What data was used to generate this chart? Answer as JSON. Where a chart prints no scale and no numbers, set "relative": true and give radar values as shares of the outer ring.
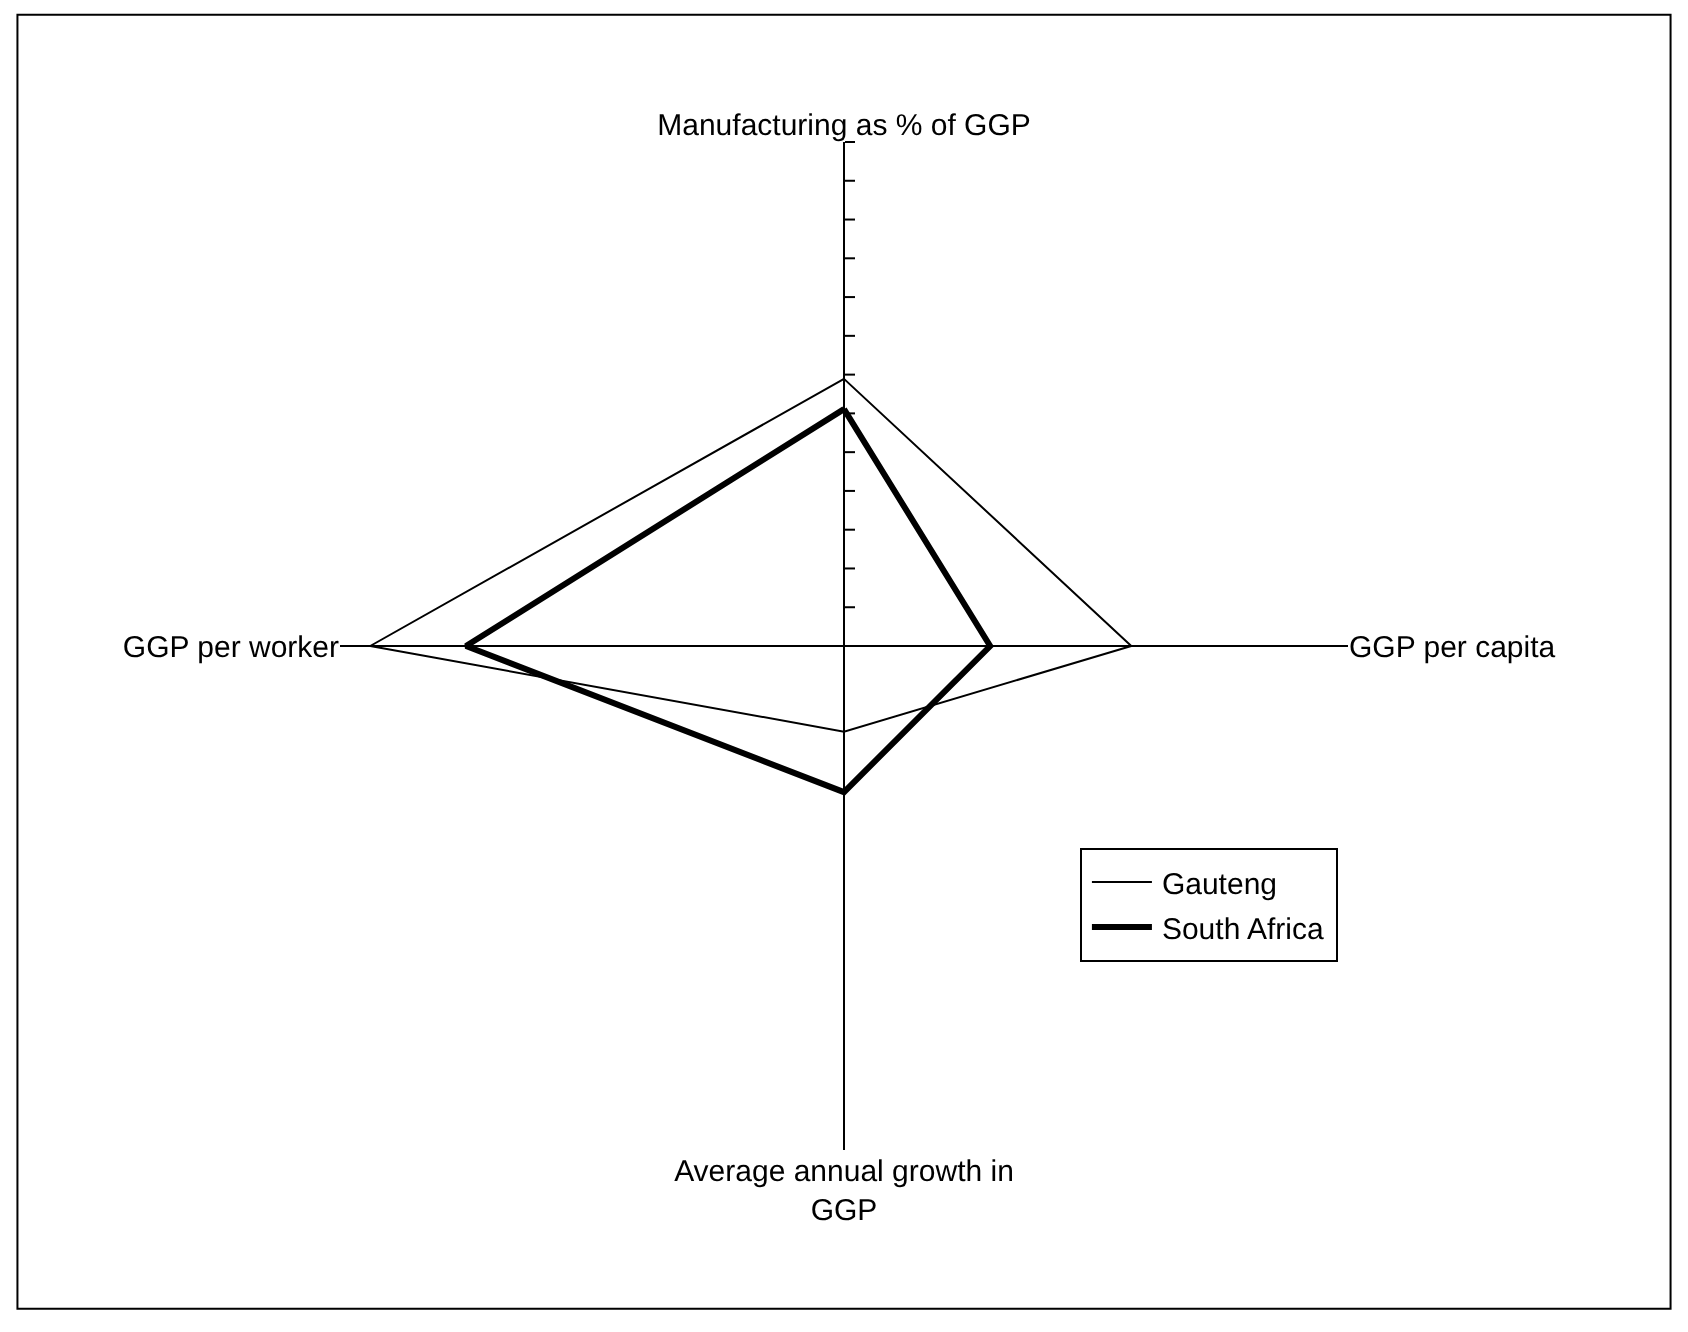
{
  "chart_data": {
    "type": "radar",
    "relative": true,
    "legend": "bottom right",
    "categories": [
      "Manufacturing as % of GGP",
      "GGP per capita",
      "Average annual growth in GGP",
      "GGP per worker"
    ],
    "series": [
      {
        "name": "Gauteng",
        "color": "#000000",
        "values": [
          0.53,
          0.57,
          0.17,
          0.94
        ]
      },
      {
        "name": "South Africa",
        "color": "#000000",
        "values": [
          0.47,
          0.29,
          0.29,
          0.75
        ]
      }
    ]
  }
}
